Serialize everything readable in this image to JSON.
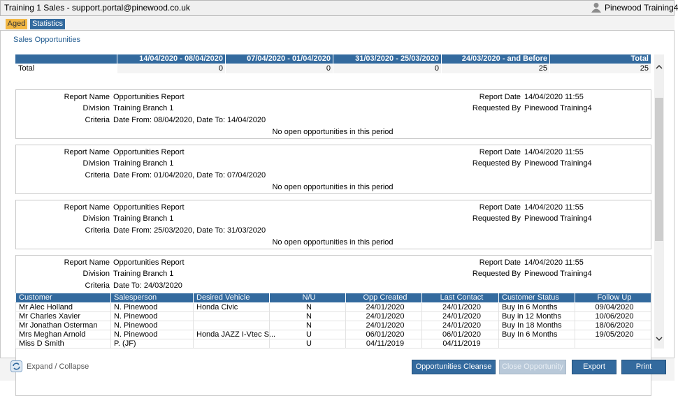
{
  "window": {
    "title": "Training 1 Sales - support.portal@pinewood.co.uk",
    "user": "Pinewood Training4"
  },
  "tabs": [
    "Aged",
    "Statistics"
  ],
  "section_title": "Sales Opportunities",
  "summary": {
    "headers": [
      "14/04/2020 - 08/04/2020",
      "07/04/2020 - 01/04/2020",
      "31/03/2020 - 25/03/2020",
      "24/03/2020 - and Before",
      "Total"
    ],
    "row_label": "Total",
    "values": [
      0,
      0,
      0,
      25,
      25
    ]
  },
  "reports": [
    {
      "left": [
        [
          "Report Name",
          "Opportunities Report"
        ],
        [
          "Division",
          "Training Branch 1"
        ],
        [
          "Criteria",
          "Date From: 08/04/2020, Date To: 14/04/2020"
        ]
      ],
      "right": [
        [
          "Report Date",
          "14/04/2020 11:55"
        ],
        [
          "Requested By",
          "Pinewood Training4"
        ]
      ],
      "message": "No open opportunities in this period"
    },
    {
      "left": [
        [
          "Report Name",
          "Opportunities Report"
        ],
        [
          "Division",
          "Training Branch 1"
        ],
        [
          "Criteria",
          "Date From: 01/04/2020, Date To: 07/04/2020"
        ]
      ],
      "right": [
        [
          "Report Date",
          "14/04/2020 11:55"
        ],
        [
          "Requested By",
          "Pinewood Training4"
        ]
      ],
      "message": "No open opportunities in this period"
    },
    {
      "left": [
        [
          "Report Name",
          "Opportunities Report"
        ],
        [
          "Division",
          "Training Branch 1"
        ],
        [
          "Criteria",
          "Date From: 25/03/2020, Date To: 31/03/2020"
        ]
      ],
      "right": [
        [
          "Report Date",
          "14/04/2020 11:55"
        ],
        [
          "Requested By",
          "Pinewood Training4"
        ]
      ],
      "message": "No open opportunities in this period"
    },
    {
      "left": [
        [
          "Report Name",
          "Opportunities Report"
        ],
        [
          "Division",
          "Training Branch 1"
        ],
        [
          "Criteria",
          "Date To: 24/03/2020"
        ]
      ],
      "right": [
        [
          "Report Date",
          "14/04/2020 11:55"
        ],
        [
          "Requested By",
          "Pinewood Training4"
        ]
      ]
    }
  ],
  "table": {
    "columns": [
      "Customer",
      "Salesperson",
      "Desired Vehicle",
      "N/U",
      "Opp Created",
      "Last Contact",
      "Customer Status",
      "Follow Up"
    ],
    "rows": [
      [
        "Mr Alec Holland",
        "N. Pinewood",
        "Honda Civic",
        "N",
        "24/01/2020",
        "24/01/2020",
        "Buy In 6 Months",
        "09/04/2020"
      ],
      [
        "Mr Charles Xavier",
        "N. Pinewood",
        null,
        "N",
        "24/01/2020",
        "24/01/2020",
        "Buy in 12 Months",
        "10/06/2020"
      ],
      [
        "Mr Jonathan Osterman",
        "N. Pinewood",
        null,
        "N",
        "24/01/2020",
        "24/01/2020",
        "Buy In 18 Months",
        "18/06/2020"
      ],
      [
        "Mrs Meghan Arnold",
        "N. Pinewood",
        "Honda JAZZ I-Vtec S...",
        "U",
        "06/01/2020",
        "06/01/2020",
        "Buy In 6 Months",
        "19/05/2020"
      ],
      [
        "Miss D Smith",
        "P. (JF)",
        null,
        "U",
        "04/11/2019",
        "04/11/2019",
        null,
        null
      ]
    ]
  },
  "footer": {
    "expand": "Expand / Collapse",
    "buttons": [
      "Opportunities Cleanse",
      "Close Opportunity",
      "Export",
      "Print"
    ]
  }
}
